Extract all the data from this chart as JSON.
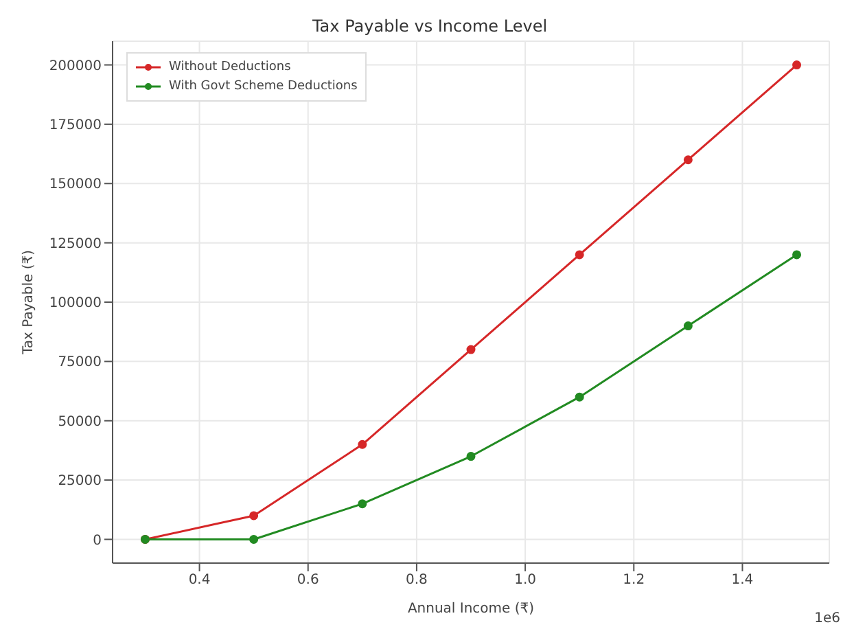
{
  "chart_data": {
    "type": "line",
    "title": "Tax Payable vs Income Level",
    "xlabel": "Annual Income (₹)",
    "ylabel": "Tax Payable (₹)",
    "x": [
      0.3,
      0.5,
      0.7,
      0.9,
      1.1,
      1.3,
      1.5
    ],
    "series": [
      {
        "name": "Without Deductions",
        "color": "#d62728",
        "values": [
          0,
          10000,
          40000,
          80000,
          120000,
          160000,
          200000
        ]
      },
      {
        "name": "With Govt Scheme Deductions",
        "color": "#228b22",
        "values": [
          0,
          0,
          15000,
          35000,
          60000,
          90000,
          120000
        ]
      }
    ],
    "xlim": [
      0.24,
      1.56
    ],
    "xticks": [
      0.4,
      0.6,
      0.8,
      {
        "value": 1.0,
        "label": "1.0"
      },
      1.2,
      1.4
    ],
    "ylim": [
      -10000,
      210000
    ],
    "yticks": [
      0,
      25000,
      50000,
      75000,
      100000,
      125000,
      150000,
      175000,
      200000
    ],
    "annotations": [
      "1e6"
    ],
    "grid": true,
    "legend": "top left",
    "marker": "circle",
    "line_style": "solid"
  }
}
